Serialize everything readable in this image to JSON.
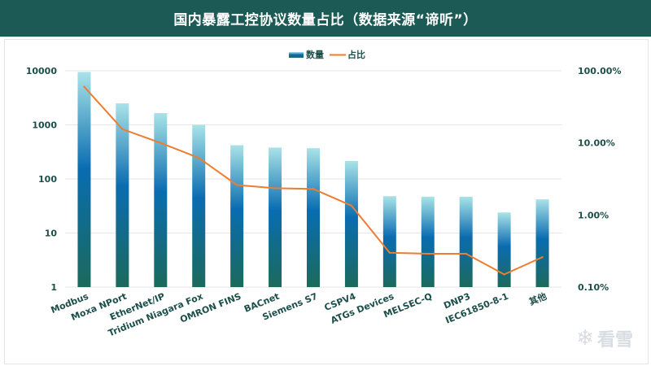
{
  "header": {
    "title": "国内暴露工控协议数量占比（数据来源“谛听”）"
  },
  "legend": {
    "bar_label": "数量",
    "line_label": "占比"
  },
  "colors": {
    "title_bg": "#1c5b55",
    "bar_top": "#a9e3e8",
    "bar_mid": "#0a6cb0",
    "bar_bottom": "#1c6a5c",
    "line": "#ed7d31",
    "axis_text": "#1c4f4a"
  },
  "watermark": {
    "icon": "snowflake-icon",
    "text": "看雪"
  },
  "chart_data": {
    "type": "bar",
    "title": "国内暴露工控协议数量占比（数据来源“谛听”）",
    "categories": [
      "Modbus",
      "Moxa NPort",
      "EtherNet/IP",
      "Tridium Niagara Fox",
      "OMRON FINS",
      "BACnet",
      "Siemens S7",
      "CSPV4",
      "ATGs Devices",
      "MELSEC-Q",
      "DNP3",
      "IEC61850-8-1",
      "其他"
    ],
    "series": [
      {
        "name": "数量",
        "type": "bar",
        "axis": "left",
        "values": [
          9500,
          2500,
          1650,
          1000,
          420,
          380,
          370,
          215,
          48,
          47,
          47,
          24,
          42
        ]
      },
      {
        "name": "占比",
        "type": "line",
        "axis": "right",
        "values": [
          0.6,
          0.155,
          0.1,
          0.062,
          0.026,
          0.0235,
          0.023,
          0.0135,
          0.003,
          0.0029,
          0.0029,
          0.0015,
          0.0026
        ]
      }
    ],
    "y_left": {
      "scale": "log",
      "ylim": [
        1,
        10000
      ],
      "ticks": [
        1,
        10,
        100,
        1000,
        10000
      ],
      "tick_labels": [
        "1",
        "10",
        "100",
        "1000",
        "10000"
      ]
    },
    "y_right": {
      "scale": "log",
      "ylim": [
        0.001,
        1
      ],
      "ticks": [
        0.001,
        0.01,
        0.1,
        1
      ],
      "tick_labels": [
        "0.10%",
        "1.00%",
        "10.00%",
        "100.00%"
      ]
    },
    "legend_position": "top-center",
    "grid": true
  }
}
